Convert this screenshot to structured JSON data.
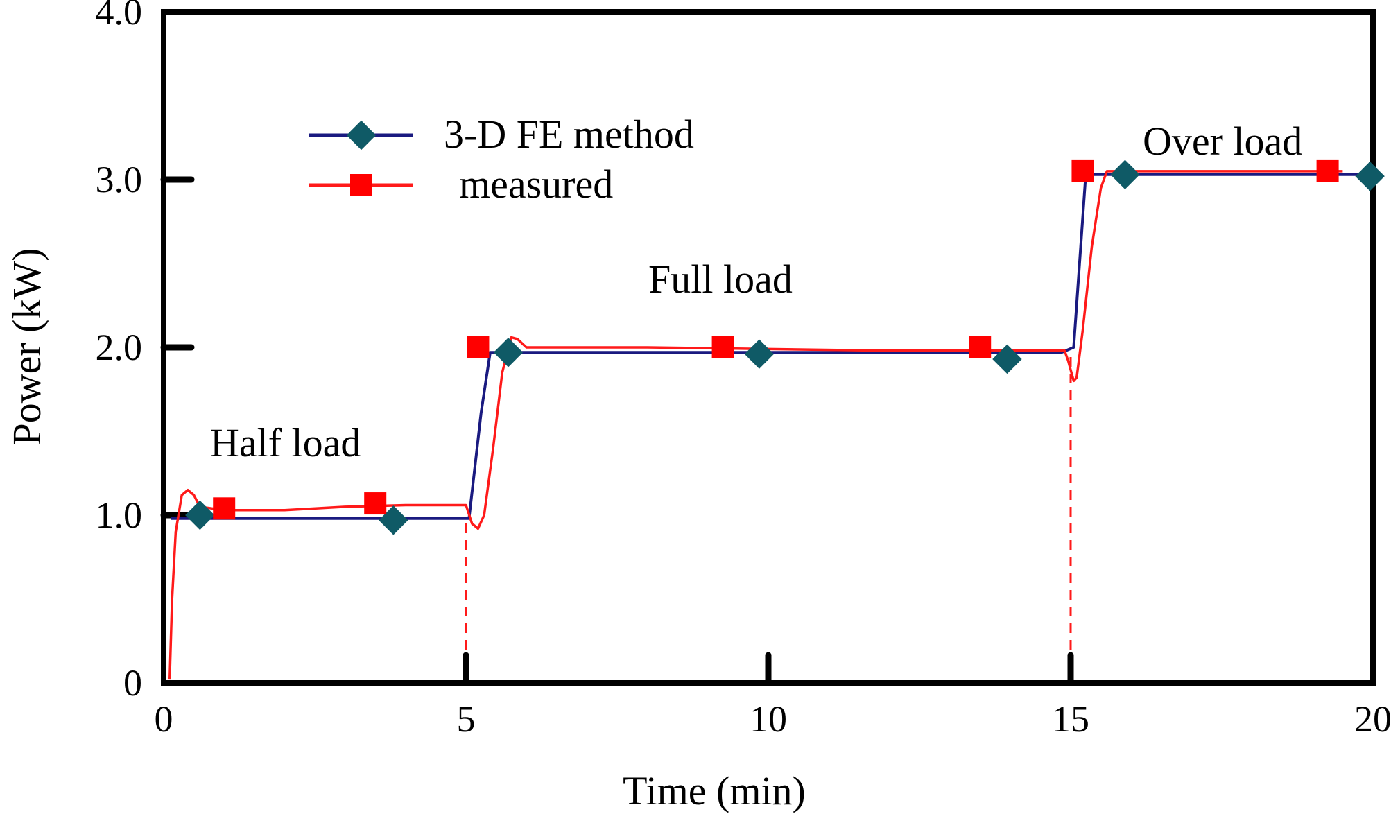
{
  "chart_data": {
    "type": "line",
    "title": "",
    "xlabel": "Time (min)",
    "ylabel": "Power (kW)",
    "xlim": [
      0,
      20
    ],
    "ylim": [
      0,
      4.0
    ],
    "x_ticks": [
      0,
      5,
      10,
      15,
      20
    ],
    "x_tick_labels": [
      "0",
      "5",
      "10",
      "15",
      "20"
    ],
    "y_ticks": [
      0,
      1.0,
      2.0,
      3.0,
      4.0
    ],
    "y_tick_labels": [
      "0",
      "1.0",
      "2.0",
      "3.0",
      "4.0"
    ],
    "grid": false,
    "legend_position": "top-left",
    "series": [
      {
        "name": "3-D FE method",
        "color": "#1a1a80",
        "marker": "diamond",
        "marker_color": "#0f5a66",
        "points": [
          [
            0.12,
            0.98
          ],
          [
            0.6,
            0.98
          ],
          [
            4.0,
            0.98
          ],
          [
            4.85,
            0.98
          ],
          [
            5.05,
            0.98
          ],
          [
            5.25,
            1.61
          ],
          [
            5.4,
            1.97
          ],
          [
            10.0,
            1.97
          ],
          [
            14.85,
            1.97
          ],
          [
            15.05,
            2.0
          ],
          [
            15.25,
            3.03
          ],
          [
            20.0,
            3.03
          ]
        ],
        "markers": [
          [
            0.6,
            1.0
          ],
          [
            3.8,
            0.97
          ],
          [
            5.7,
            1.97
          ],
          [
            9.85,
            1.96
          ],
          [
            13.95,
            1.93
          ],
          [
            15.9,
            3.03
          ],
          [
            19.95,
            3.02
          ]
        ]
      },
      {
        "name": "measured",
        "color": "#ff1a1a",
        "marker": "square",
        "marker_color": "#ff0000",
        "points": [
          [
            0.1,
            0.02
          ],
          [
            0.14,
            0.5
          ],
          [
            0.2,
            0.9
          ],
          [
            0.3,
            1.12
          ],
          [
            0.4,
            1.15
          ],
          [
            0.5,
            1.12
          ],
          [
            0.6,
            1.05
          ],
          [
            1.0,
            1.03
          ],
          [
            2.0,
            1.03
          ],
          [
            3.0,
            1.05
          ],
          [
            4.0,
            1.06
          ],
          [
            5.0,
            1.06
          ],
          [
            5.1,
            0.95
          ],
          [
            5.2,
            0.92
          ],
          [
            5.3,
            1.0
          ],
          [
            5.45,
            1.4
          ],
          [
            5.6,
            1.85
          ],
          [
            5.75,
            2.06
          ],
          [
            5.85,
            2.05
          ],
          [
            6.0,
            2.0
          ],
          [
            8.0,
            2.0
          ],
          [
            10.0,
            1.99
          ],
          [
            12.0,
            1.98
          ],
          [
            14.9,
            1.98
          ],
          [
            14.96,
            1.92
          ],
          [
            15.05,
            1.8
          ],
          [
            15.1,
            1.82
          ],
          [
            15.2,
            2.1
          ],
          [
            15.35,
            2.6
          ],
          [
            15.5,
            2.95
          ],
          [
            15.6,
            3.05
          ],
          [
            17.0,
            3.05
          ],
          [
            19.5,
            3.05
          ]
        ],
        "markers": [
          [
            1.0,
            1.04
          ],
          [
            3.5,
            1.07
          ],
          [
            5.2,
            2.0
          ],
          [
            9.25,
            2.0
          ],
          [
            13.5,
            2.0
          ],
          [
            15.2,
            3.05
          ],
          [
            19.25,
            3.05
          ]
        ]
      }
    ],
    "reference_lines": [
      {
        "x": 5.0,
        "style": "dashed",
        "color": "#ff1a1a",
        "y_from": 0.0,
        "y_to": 0.98
      },
      {
        "x": 15.0,
        "style": "dashed",
        "color": "#ff1a1a",
        "y_from": 0.0,
        "y_to": 1.97
      }
    ],
    "annotations": [
      {
        "text": "Half load",
        "x": 0.8,
        "y": 1.45
      },
      {
        "text": "Full load",
        "x": 8.0,
        "y": 2.45
      },
      {
        "text": "Over load",
        "x": 16.3,
        "y": 3.25
      }
    ]
  }
}
